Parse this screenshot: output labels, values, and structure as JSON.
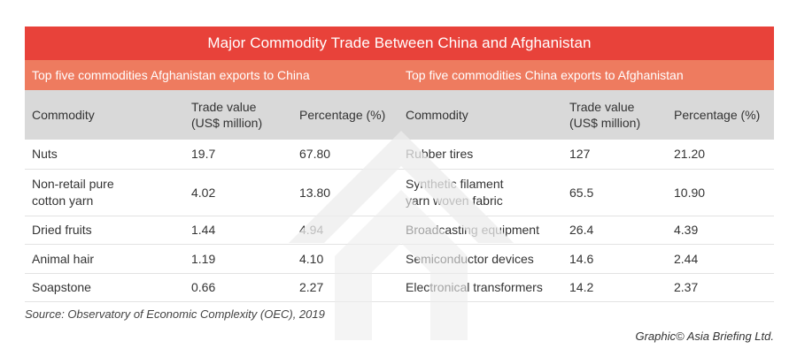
{
  "title": "Major Commodity Trade Between China and Afghanistan",
  "left_section_title": "Top five commodities Afghanistan exports to China",
  "right_section_title": "Top five commodities China exports to Afghanistan",
  "columns": {
    "commodity": "Commodity",
    "trade_value_line1": "Trade value",
    "trade_value_line2": "(US$ million)",
    "percentage": "Percentage (%)"
  },
  "afghanistan_exports": [
    {
      "commodity_line1": "Nuts",
      "commodity_line2": "",
      "trade_value": "19.7",
      "percentage": "67.80"
    },
    {
      "commodity_line1": "Non-retail pure",
      "commodity_line2": "cotton yarn",
      "trade_value": "4.02",
      "percentage": "13.80"
    },
    {
      "commodity_line1": "Dried fruits",
      "commodity_line2": "",
      "trade_value": "1.44",
      "percentage": "4.94"
    },
    {
      "commodity_line1": "Animal hair",
      "commodity_line2": "",
      "trade_value": "1.19",
      "percentage": "4.10"
    },
    {
      "commodity_line1": "Soapstone",
      "commodity_line2": "",
      "trade_value": "0.66",
      "percentage": "2.27"
    }
  ],
  "china_exports": [
    {
      "commodity_line1": "Rubber tires",
      "commodity_line2": "",
      "trade_value": "127",
      "percentage": "21.20"
    },
    {
      "commodity_line1": "Synthetic filament",
      "commodity_line2": "yarn woven fabric",
      "trade_value": "65.5",
      "percentage": "10.90"
    },
    {
      "commodity_line1": "Broadcasting equipment",
      "commodity_line2": "",
      "trade_value": "26.4",
      "percentage": "4.39"
    },
    {
      "commodity_line1": "Semiconductor devices",
      "commodity_line2": "",
      "trade_value": "14.6",
      "percentage": "2.44"
    },
    {
      "commodity_line1": "Electronical transformers",
      "commodity_line2": "",
      "trade_value": "14.2",
      "percentage": "2.37"
    }
  ],
  "source": "Source: Observatory of Economic Complexity (OEC), 2019",
  "credit": "Graphic© Asia Briefing Ltd.",
  "colors": {
    "title_bar": "#e8423a",
    "section_bar": "#ee7b5f",
    "header_row": "#d9d9d9"
  },
  "watermark_icon": "asia-briefing-logo-icon"
}
